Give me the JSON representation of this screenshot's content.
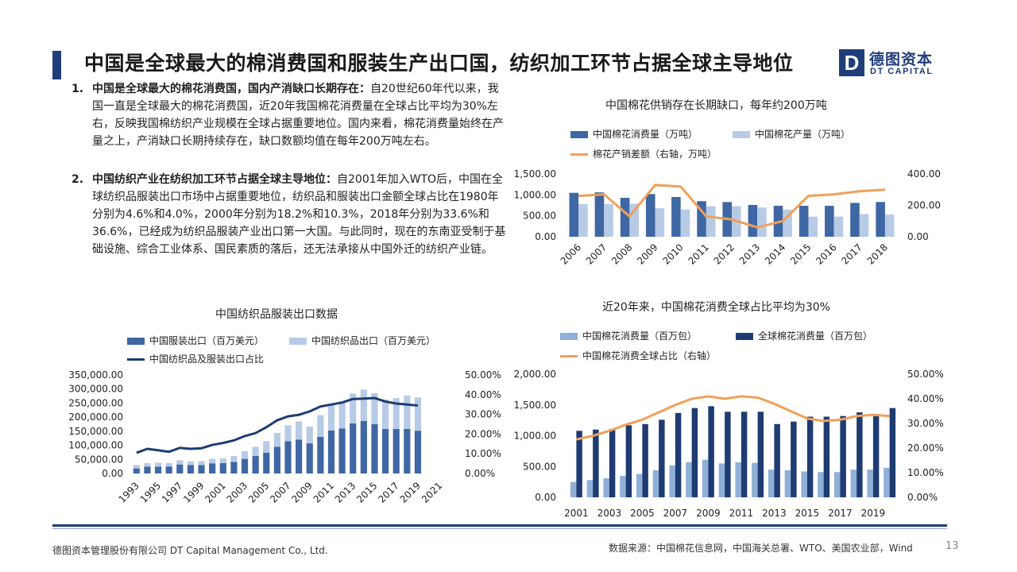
{
  "header": {
    "title": "中国是全球最大的棉消费国和服装生产出口国，纺织加工环节占据全球主导地位",
    "logo_mark": "D",
    "logo_cn": "德图资本",
    "logo_en": "DT CAPITAL"
  },
  "paragraphs": [
    {
      "num": "1.",
      "bold": "中国是全球最大的棉花消费国，国内产消缺口长期存在：",
      "text": "自20世纪60年代以来，我国一直是全球最大的棉花消费国，近20年我国棉花消费量在全球占比平均为30%左右，反映我国棉纺织产业规模在全球占据重要地位。国内来看，棉花消费量始终在产量之上，产消缺口长期持续存在，缺口数额均值在每年200万吨左右。"
    },
    {
      "num": "2.",
      "bold": "中国纺织产业在纺织加工环节占据全球主导地位：",
      "text": "自2001年加入WTO后，中国在全球纺织品服装出口市场中占据重要地位，纺织品和服装出口金额全球占比在1980年分别为4.6%和4.0%，2000年分别为18.2%和10.3%，2018年分别为33.6%和36.6%，已经成为纺织品服装产业出口第一大国。与此同时，现在的东南亚受制于基础设施、综合工业体系、国民素质的落后，还无法承接从中国外迁的纺织产业链。"
    }
  ],
  "colors": {
    "dark": "#3f67a3",
    "light": "#b7cbe6",
    "orange": "#f0a05a",
    "navy": "#1e3c72",
    "mid": "#2f4f8f"
  },
  "footer": {
    "company": "德图资本管理股份有限公司  DT Capital Management  Co., Ltd.",
    "source": "数据来源：中国棉花信息网，中国海关总署、WTO、美国农业部，Wind",
    "page": "13"
  },
  "chart_data": [
    {
      "id": "cotton-gap",
      "type": "bar+line",
      "title": "中国棉花供销存在长期缺口，每年约200万吨",
      "categories": [
        "2006",
        "2007",
        "2008",
        "2009",
        "2010",
        "2011",
        "2012",
        "2013",
        "2014",
        "2015",
        "2016",
        "2017",
        "2018"
      ],
      "series": [
        {
          "name": "中国棉花消费量（万吨）",
          "type": "bar",
          "axis": "left",
          "values": [
            1050,
            1060,
            930,
            1020,
            950,
            850,
            830,
            760,
            740,
            740,
            740,
            810,
            830
          ]
        },
        {
          "name": "中国棉花产量（万吨）",
          "type": "bar",
          "axis": "left",
          "values": [
            780,
            780,
            790,
            680,
            650,
            730,
            730,
            700,
            650,
            480,
            480,
            540,
            530
          ]
        },
        {
          "name": "棉花产销差额（右轴，万吨）",
          "type": "line",
          "axis": "right",
          "values": [
            260,
            270,
            130,
            330,
            320,
            130,
            110,
            60,
            100,
            260,
            270,
            290,
            300
          ]
        }
      ],
      "y_left": {
        "min": 0,
        "max": 1500,
        "ticks": [
          "0.00",
          "500.00",
          "1,000.00",
          "1,500.00"
        ]
      },
      "y_right": {
        "min": 0,
        "max": 400,
        "ticks": [
          "0.00",
          "200.00",
          "400.00"
        ]
      }
    },
    {
      "id": "textile-export",
      "type": "stacked-bar+line",
      "title": "中国纺织品服装出口数据",
      "categories": [
        "1993",
        "1994",
        "1995",
        "1996",
        "1997",
        "1998",
        "1999",
        "2000",
        "2001",
        "2002",
        "2003",
        "2004",
        "2005",
        "2006",
        "2007",
        "2008",
        "2009",
        "2010",
        "2011",
        "2012",
        "2013",
        "2014",
        "2015",
        "2016",
        "2017",
        "2018",
        "2019"
      ],
      "x_tick_labels": [
        "1993",
        "1995",
        "1997",
        "1999",
        "2001",
        "2003",
        "2005",
        "2007",
        "2009",
        "2011",
        "2013",
        "2015",
        "2017",
        "2019",
        "2021"
      ],
      "series": [
        {
          "name": "中国服装出口（百万美元）",
          "type": "bar",
          "axis": "left",
          "values": [
            18000,
            24000,
            24000,
            25000,
            32000,
            30000,
            30000,
            36000,
            37000,
            41000,
            52000,
            62000,
            74000,
            95000,
            115000,
            120000,
            107000,
            130000,
            153000,
            160000,
            178000,
            187000,
            175000,
            158000,
            158000,
            158000,
            152000
          ]
        },
        {
          "name": "中国纺织品出口（百万美元）",
          "type": "bar",
          "axis": "left",
          "values": [
            12000,
            13000,
            14000,
            12000,
            15000,
            13000,
            14000,
            16000,
            17000,
            21000,
            27000,
            33000,
            41000,
            49000,
            56000,
            65000,
            60000,
            77000,
            95000,
            96000,
            106000,
            111000,
            110000,
            105000,
            110000,
            119000,
            118000
          ]
        },
        {
          "name": "中国纺织品及服装出口占比",
          "type": "line",
          "axis": "right",
          "values": [
            0.105,
            0.125,
            0.118,
            0.11,
            0.13,
            0.125,
            0.128,
            0.145,
            0.155,
            0.168,
            0.19,
            0.205,
            0.235,
            0.27,
            0.29,
            0.298,
            0.315,
            0.34,
            0.35,
            0.36,
            0.378,
            0.38,
            0.383,
            0.365,
            0.355,
            0.35,
            0.345
          ]
        }
      ],
      "y_left": {
        "min": 0,
        "max": 350000,
        "ticks": [
          "0.00",
          "50,000.00",
          "100,000.00",
          "150,000.00",
          "200,000.00",
          "250,000.00",
          "300,000.00",
          "350,000.00"
        ]
      },
      "y_right": {
        "min": 0,
        "max": 0.5,
        "ticks": [
          "0.00%",
          "10.00%",
          "20.00%",
          "30.00%",
          "40.00%",
          "50.00%"
        ]
      }
    },
    {
      "id": "cotton-share",
      "type": "bar+line",
      "title": "近20年来，中国棉花消费全球占比平均为30%",
      "categories": [
        "2001",
        "2002",
        "2003",
        "2004",
        "2005",
        "2006",
        "2007",
        "2008",
        "2009",
        "2010",
        "2011",
        "2012",
        "2013",
        "2014",
        "2015",
        "2016",
        "2017",
        "2018",
        "2019",
        "2020"
      ],
      "x_tick_labels": [
        "2001",
        "2003",
        "2005",
        "2007",
        "2009",
        "2011",
        "2013",
        "2015",
        "2017",
        "2019"
      ],
      "series": [
        {
          "name": "中国棉花消费量（百万包）",
          "type": "bar",
          "axis": "left",
          "values": [
            250,
            280,
            310,
            350,
            380,
            440,
            520,
            570,
            610,
            550,
            570,
            560,
            450,
            440,
            420,
            410,
            410,
            450,
            450,
            480
          ]
        },
        {
          "name": "全球棉花消费量（百万包）",
          "type": "bar",
          "axis": "left",
          "values": [
            1080,
            1100,
            1110,
            1170,
            1190,
            1260,
            1370,
            1450,
            1480,
            1390,
            1390,
            1390,
            1190,
            1230,
            1310,
            1310,
            1320,
            1380,
            1320,
            1450
          ]
        },
        {
          "name": "中国棉花消费全球占比（右轴）",
          "type": "line",
          "axis": "right",
          "values": [
            0.235,
            0.25,
            0.27,
            0.295,
            0.315,
            0.345,
            0.375,
            0.4,
            0.41,
            0.4,
            0.41,
            0.405,
            0.38,
            0.35,
            0.32,
            0.31,
            0.315,
            0.33,
            0.335,
            0.33
          ]
        }
      ],
      "y_left": {
        "min": 0,
        "max": 2000,
        "ticks": [
          "0.00",
          "500.00",
          "1,000.00",
          "1,500.00",
          "2,000.00"
        ]
      },
      "y_right": {
        "min": 0,
        "max": 0.5,
        "ticks": [
          "0.00%",
          "10.00%",
          "20.00%",
          "30.00%",
          "40.00%",
          "50.00%"
        ]
      }
    }
  ]
}
